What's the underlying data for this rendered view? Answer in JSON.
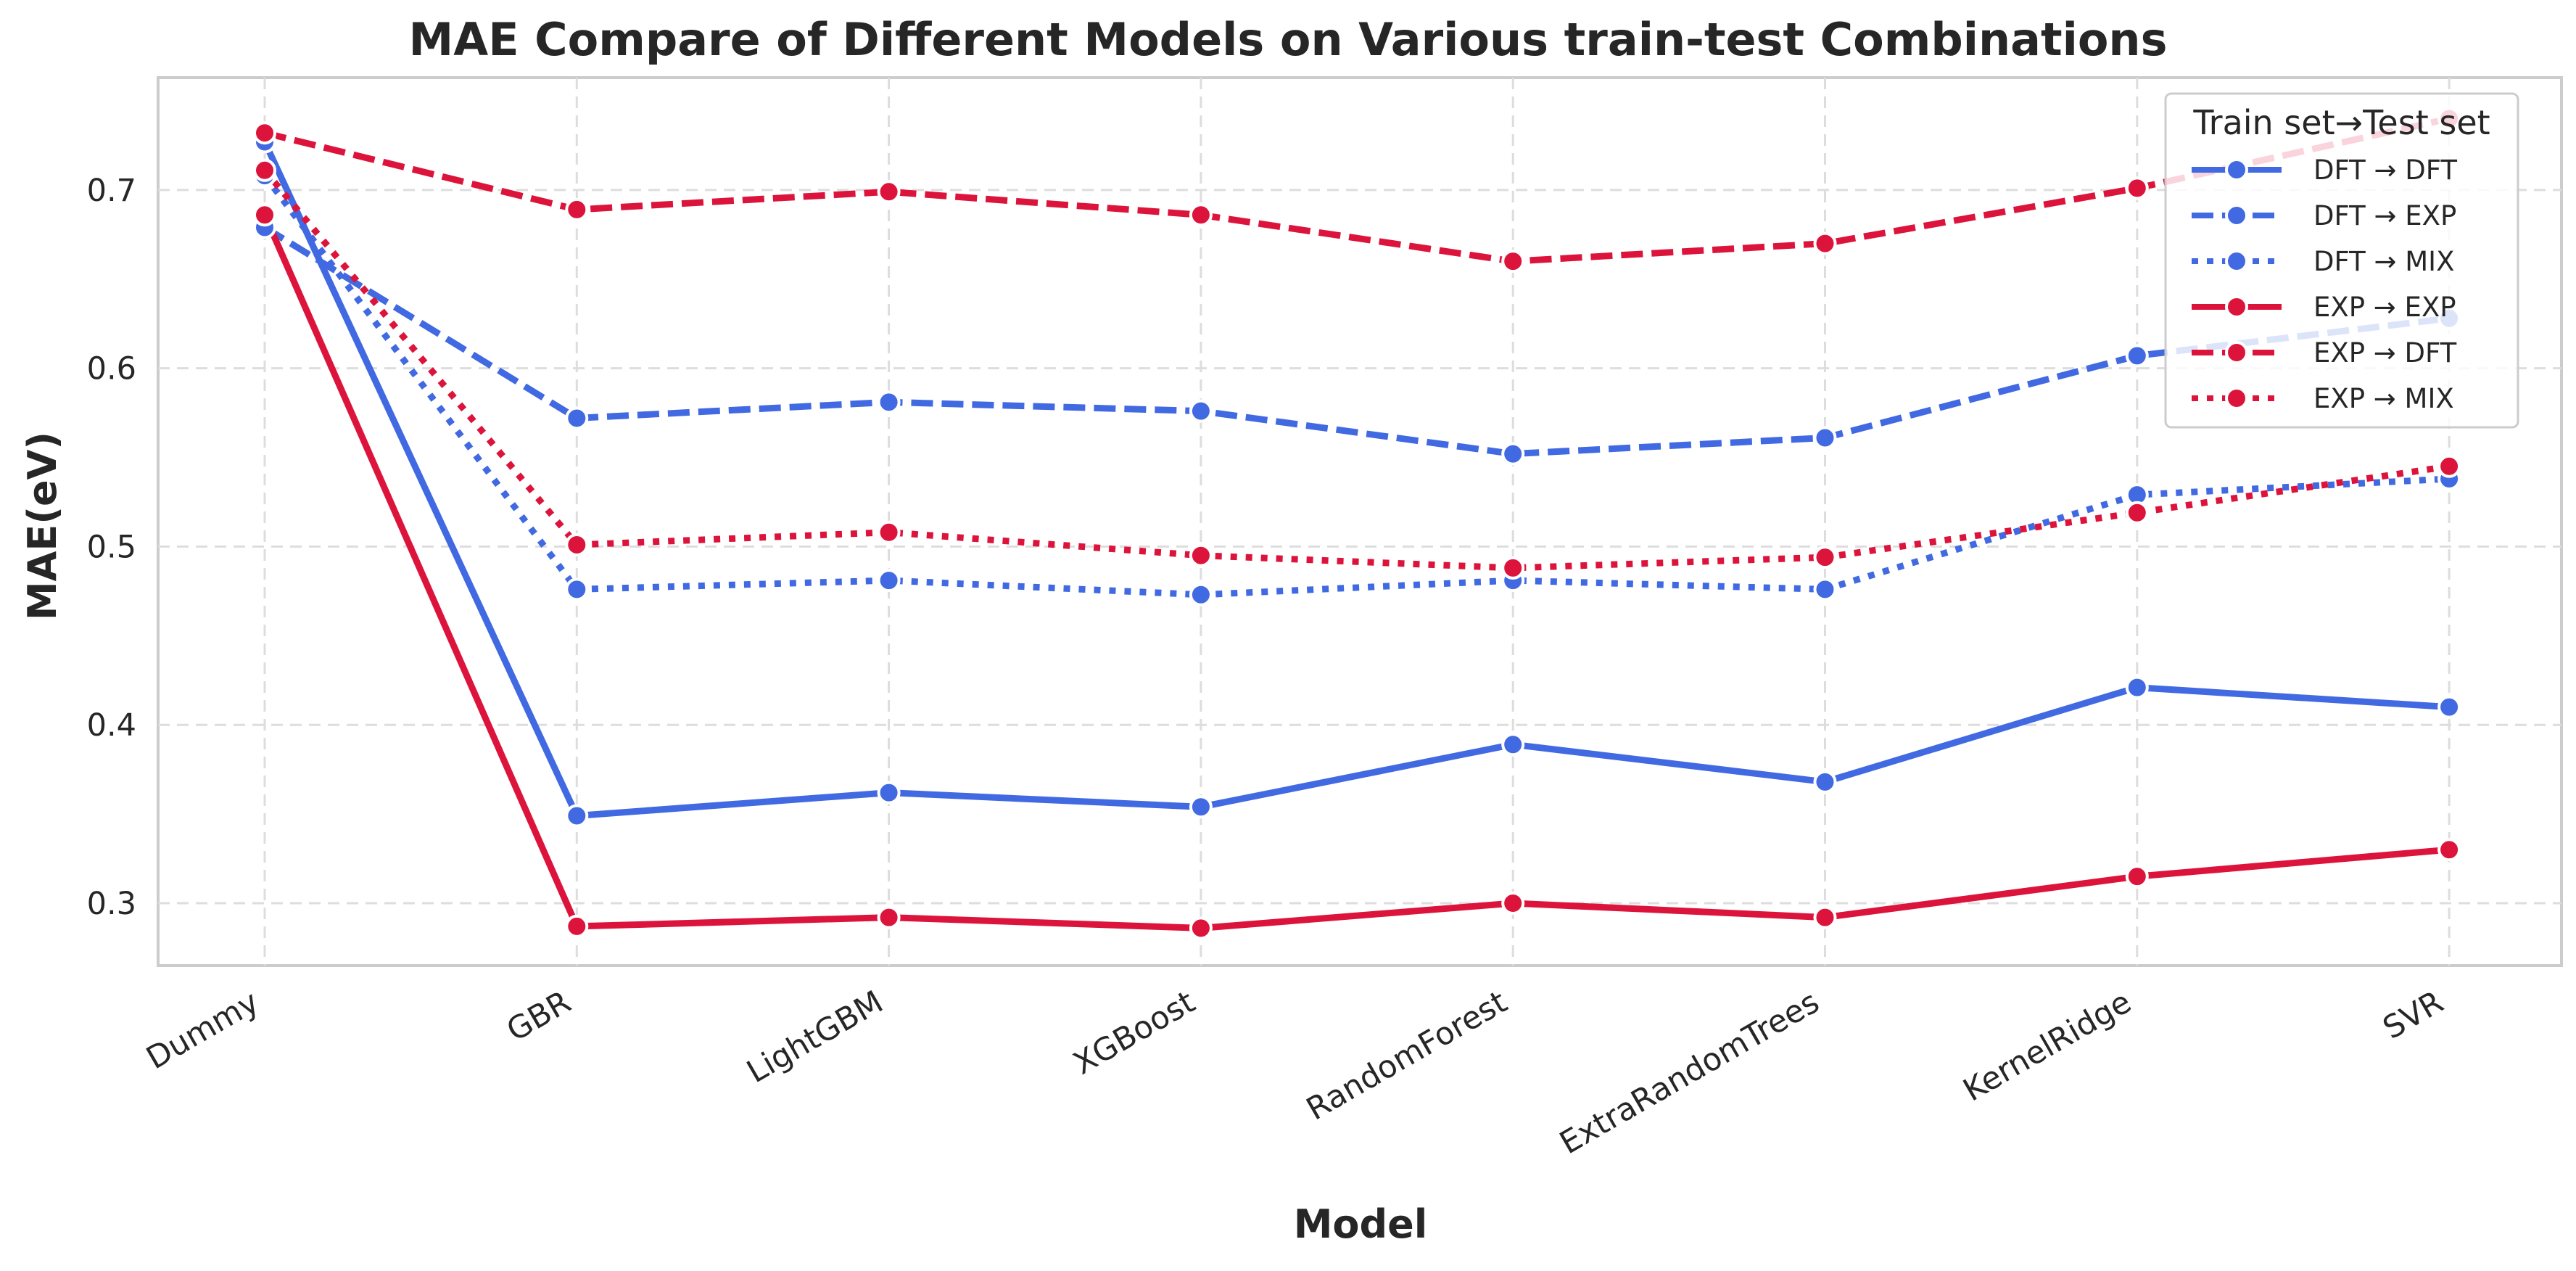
{
  "chart_data": {
    "type": "line",
    "title": "MAE Compare of Different Models on Various train-test Combinations",
    "xlabel": "Model",
    "ylabel": "MAE(eV)",
    "categories": [
      "Dummy",
      "GBR",
      "LightGBM",
      "XGBoost",
      "RandomForest",
      "ExtraRandomTrees",
      "KernelRidge",
      "SVR"
    ],
    "ylim": [
      0.265,
      0.763
    ],
    "yticks": [
      0.3,
      0.4,
      0.5,
      0.6,
      0.7
    ],
    "ytick_labels": [
      "0.3",
      "0.4",
      "0.5",
      "0.6",
      "0.7"
    ],
    "grid": true,
    "legend": {
      "title": "Train set→Test set",
      "placement": "top-right"
    },
    "series": [
      {
        "name": "DFT → DFT",
        "style": "solid",
        "color": "#4169E1",
        "values": [
          0.727,
          0.349,
          0.362,
          0.354,
          0.389,
          0.368,
          0.421,
          0.41
        ]
      },
      {
        "name": "DFT → EXP",
        "style": "dashed",
        "color": "#4169E1",
        "values": [
          0.679,
          0.572,
          0.581,
          0.576,
          0.552,
          0.561,
          0.607,
          0.628
        ]
      },
      {
        "name": "DFT → MIX",
        "style": "dotted",
        "color": "#4169E1",
        "values": [
          0.708,
          0.476,
          0.481,
          0.473,
          0.481,
          0.476,
          0.529,
          0.538
        ]
      },
      {
        "name": "EXP → EXP",
        "style": "solid",
        "color": "#DC143C",
        "values": [
          0.686,
          0.287,
          0.292,
          0.286,
          0.3,
          0.292,
          0.315,
          0.33
        ]
      },
      {
        "name": "EXP → DFT",
        "style": "dashed",
        "color": "#DC143C",
        "values": [
          0.732,
          0.689,
          0.699,
          0.686,
          0.66,
          0.67,
          0.701,
          0.74
        ]
      },
      {
        "name": "EXP → MIX",
        "style": "dotted",
        "color": "#DC143C",
        "values": [
          0.711,
          0.501,
          0.508,
          0.495,
          0.488,
          0.494,
          0.519,
          0.545
        ]
      }
    ]
  }
}
